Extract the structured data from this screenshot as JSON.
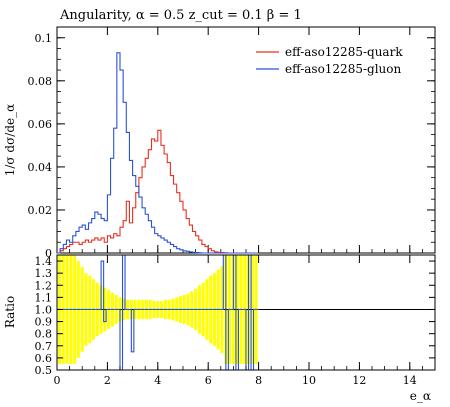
{
  "chart_data": [
    {
      "type": "line",
      "title": "Angularity, α = 0.5 z_cut = 0.1 β = 1",
      "ylabel": "1/σ dσ/de_α",
      "xlim": [
        0,
        15
      ],
      "ylim": [
        0,
        0.105
      ],
      "yticks": [
        0,
        0.02,
        0.04,
        0.06,
        0.08,
        0.1
      ],
      "ytick_labels": [
        "0",
        "0.02",
        "0.04",
        "0.06",
        "0.08",
        "0.1"
      ],
      "legend_position": "top-right",
      "bin_width": 0.125,
      "bin_start": 0,
      "series": [
        {
          "name": "eff-aso12285-quark",
          "color": "#e8311f",
          "values": [
            0,
            0.001,
            0.002,
            0.003,
            0.004,
            0.005,
            0.005,
            0.004,
            0.005,
            0.006,
            0.005,
            0.006,
            0.007,
            0.006,
            0.007,
            0.005,
            0.008,
            0.007,
            0.009,
            0.008,
            0.012,
            0.015,
            0.024,
            0.014,
            0.021,
            0.028,
            0.035,
            0.04,
            0.044,
            0.048,
            0.053,
            0.052,
            0.057,
            0.05,
            0.046,
            0.042,
            0.036,
            0.032,
            0.028,
            0.024,
            0.02,
            0.016,
            0.013,
            0.01,
            0.008,
            0.006,
            0.004,
            0.003,
            0.002,
            0.001,
            0.0005,
            0.0003,
            0.0002,
            0.0001,
            0,
            0,
            0,
            0,
            0,
            0,
            0,
            0,
            0,
            0
          ]
        },
        {
          "name": "eff-aso12285-gluon",
          "color": "#2a52d6",
          "values": [
            0,
            0.002,
            0.004,
            0.006,
            0.005,
            0.008,
            0.01,
            0.012,
            0.013,
            0.011,
            0.014,
            0.016,
            0.019,
            0.018,
            0.016,
            0.015,
            0.027,
            0.044,
            0.058,
            0.093,
            0.085,
            0.07,
            0.056,
            0.043,
            0.036,
            0.031,
            0.026,
            0.021,
            0.018,
            0.015,
            0.012,
            0.009,
            0.008,
            0.007,
            0.006,
            0.005,
            0.004,
            0.003,
            0.002,
            0.0015,
            0.001,
            0.0008,
            0.0005,
            0.0003,
            0.0002,
            0.0001,
            0,
            0,
            0,
            0,
            0,
            0,
            0,
            0,
            0,
            0,
            0,
            0,
            0,
            0,
            0,
            0,
            0,
            0
          ]
        }
      ]
    },
    {
      "type": "line",
      "title": "",
      "xlabel": "e_α",
      "ylabel": "Ratio",
      "xlim": [
        0,
        15
      ],
      "ylim": [
        0.5,
        1.45
      ],
      "xticks": [
        0,
        2,
        4,
        6,
        8,
        10,
        12,
        14
      ],
      "xtick_labels": [
        "0",
        "2",
        "4",
        "6",
        "8",
        "10",
        "12",
        "14"
      ],
      "yticks": [
        0.5,
        0.6,
        0.7,
        0.8,
        0.9,
        1.0,
        1.1,
        1.2,
        1.3,
        1.4
      ],
      "ytick_labels": [
        "0.5",
        "0.6",
        "0.7",
        "0.8",
        "0.9",
        "1.0",
        "1.1",
        "1.2",
        "1.3",
        "1.4"
      ],
      "reference_line": 1.0,
      "band_color": "#ffff00",
      "band_x": [
        0.1,
        0.25,
        0.4,
        0.55,
        0.7,
        0.85,
        1.0,
        1.15,
        1.3,
        1.45,
        1.6,
        1.75,
        1.9,
        2.05,
        2.2,
        2.35,
        2.5,
        2.65,
        2.8,
        2.95,
        3.1,
        3.25,
        3.4,
        3.55,
        3.7,
        3.85,
        4.0,
        4.15,
        4.3,
        4.45,
        4.6,
        4.75,
        4.9,
        5.05,
        5.2,
        5.35,
        5.5,
        5.65,
        5.8,
        5.95,
        6.1,
        6.25,
        6.4,
        6.55,
        6.7,
        6.85,
        7.0,
        7.15,
        7.3,
        7.45,
        7.6,
        7.75,
        7.9
      ],
      "band_half_width": [
        0.45,
        0.45,
        0.45,
        0.45,
        0.45,
        0.4,
        0.35,
        0.3,
        0.28,
        0.25,
        0.22,
        0.2,
        0.18,
        0.16,
        0.14,
        0.12,
        0.1,
        0.09,
        0.08,
        0.08,
        0.08,
        0.08,
        0.08,
        0.08,
        0.08,
        0.07,
        0.07,
        0.07,
        0.08,
        0.08,
        0.09,
        0.1,
        0.11,
        0.12,
        0.13,
        0.15,
        0.17,
        0.2,
        0.22,
        0.25,
        0.28,
        0.3,
        0.33,
        0.36,
        0.45,
        0.45,
        0.45,
        0.45,
        0.45,
        0.45,
        0.45,
        0.45,
        0.45
      ],
      "ratio_line": {
        "color": "#2a52d6",
        "points": [
          [
            0,
            1.0
          ],
          [
            1.75,
            1.0
          ],
          [
            1.75,
            1.4
          ],
          [
            1.85,
            1.4
          ],
          [
            1.85,
            0.9
          ],
          [
            1.95,
            0.9
          ],
          [
            1.95,
            1.0
          ],
          [
            2.5,
            1.0
          ],
          [
            2.5,
            0.5
          ],
          [
            2.6,
            0.5
          ],
          [
            2.6,
            1.45
          ],
          [
            2.7,
            1.45
          ],
          [
            2.7,
            1.0
          ],
          [
            2.95,
            1.0
          ],
          [
            2.95,
            0.65
          ],
          [
            3.05,
            0.65
          ],
          [
            3.05,
            1.0
          ],
          [
            6.6,
            1.0
          ],
          [
            6.6,
            1.45
          ],
          [
            6.7,
            1.45
          ],
          [
            6.7,
            0.5
          ],
          [
            6.8,
            0.5
          ],
          [
            6.8,
            1.0
          ],
          [
            7.0,
            1.0
          ],
          [
            7.0,
            1.45
          ],
          [
            7.1,
            1.45
          ],
          [
            7.1,
            0.5
          ],
          [
            7.2,
            0.5
          ],
          [
            7.2,
            1.0
          ],
          [
            7.5,
            1.0
          ],
          [
            7.5,
            0.5
          ],
          [
            7.6,
            0.5
          ],
          [
            7.6,
            1.45
          ],
          [
            7.7,
            1.45
          ],
          [
            7.7,
            0.5
          ],
          [
            7.8,
            0.5
          ],
          [
            7.8,
            1.0
          ],
          [
            8.0,
            1.0
          ]
        ]
      }
    }
  ]
}
